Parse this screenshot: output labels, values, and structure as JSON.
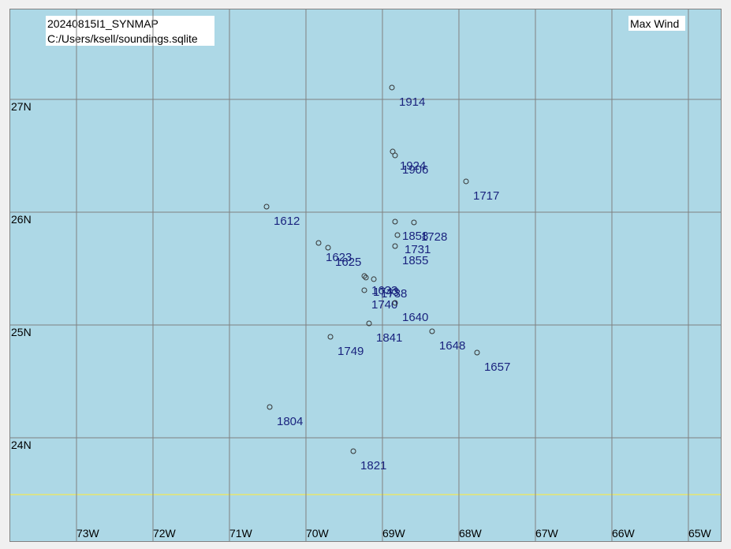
{
  "chart_data": {
    "type": "scatter",
    "title": "20240815I1_SYNMAP",
    "subtitle": "C:/Users/ksell/soundings.sqlite",
    "annotation": "Max Wind",
    "xlim": [
      -73.866,
      -64.577
    ],
    "ylim": [
      23.084,
      27.797
    ],
    "xticks": [
      {
        "value": -73,
        "label": "73W"
      },
      {
        "value": -72,
        "label": "72W"
      },
      {
        "value": -71,
        "label": "71W"
      },
      {
        "value": -70,
        "label": "70W"
      },
      {
        "value": -69,
        "label": "69W"
      },
      {
        "value": -68,
        "label": "68W"
      },
      {
        "value": -67,
        "label": "67W"
      },
      {
        "value": -66,
        "label": "66W"
      },
      {
        "value": -65,
        "label": "65W"
      }
    ],
    "yticks": [
      {
        "value": 24,
        "label": "24N"
      },
      {
        "value": 25,
        "label": "25N"
      },
      {
        "value": 26,
        "label": "26N"
      },
      {
        "value": 27,
        "label": "27N"
      }
    ],
    "grid": true,
    "labels": [
      "1914",
      "1924",
      "1906",
      "1717",
      "1612",
      "1858",
      "1728",
      "1731",
      "1855",
      "1623",
      "1625",
      "1633",
      "1743",
      "1738",
      "1740",
      "1841",
      "1640",
      "1648",
      "1749",
      "1657",
      "1804",
      "1821"
    ],
    "x": [
      -68.876,
      -68.866,
      -68.835,
      -67.907,
      -70.515,
      -68.835,
      -68.588,
      -68.804,
      -68.835,
      -69.835,
      -69.711,
      -69.237,
      -69.216,
      -69.113,
      -69.237,
      -69.175,
      -68.835,
      -68.351,
      -69.68,
      -67.763,
      -70.474,
      -69.381
    ],
    "values": [
      27.105,
      26.538,
      26.503,
      26.273,
      26.049,
      25.916,
      25.909,
      25.797,
      25.699,
      25.727,
      25.685,
      25.434,
      25.42,
      25.406,
      25.308,
      25.014,
      25.196,
      24.944,
      24.895,
      24.755,
      24.273,
      23.881
    ]
  }
}
